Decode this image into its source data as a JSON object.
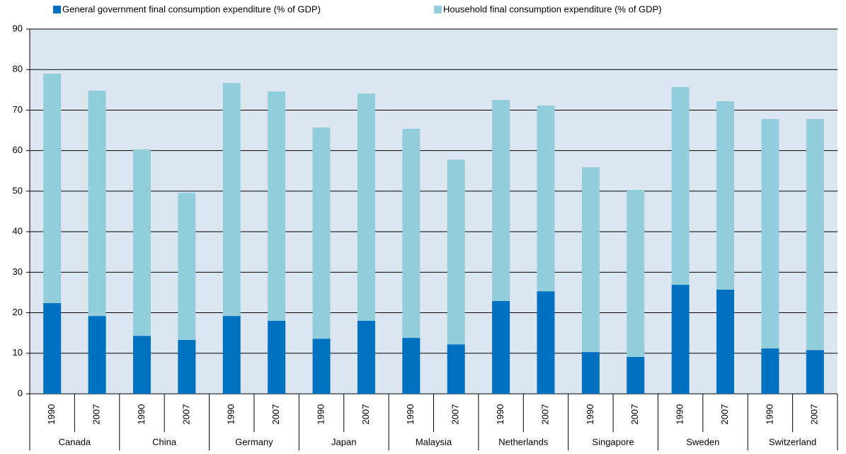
{
  "chart_data": {
    "type": "stacked_bar",
    "categories": [
      "1990",
      "2007",
      "1990",
      "2007",
      "1990",
      "2007",
      "1990",
      "2007",
      "1990",
      "2007",
      "1990",
      "2007",
      "1990",
      "2007",
      "1990",
      "2007",
      "1990",
      "2007"
    ],
    "groups": [
      "Canada",
      "China",
      "Germany",
      "Japan",
      "Malaysia",
      "Netherlands",
      "Singapore",
      "Sweden",
      "Switzerland"
    ],
    "series": [
      {
        "name": "General government final consumption expenditure (% of GDP)",
        "color": "#0070c0",
        "values": [
          22.4,
          19.2,
          14.3,
          13.3,
          19.2,
          18.0,
          13.6,
          18.0,
          13.8,
          12.2,
          22.9,
          25.3,
          10.3,
          9.1,
          26.9,
          25.7,
          11.2,
          10.8
        ]
      },
      {
        "name": "Household final consumption expenditure (% of GDP)",
        "color": "#92cddc",
        "values": [
          56.6,
          55.6,
          46.0,
          36.3,
          57.5,
          56.6,
          52.1,
          56.1,
          51.6,
          45.6,
          49.6,
          45.8,
          45.6,
          41.2,
          48.8,
          46.5,
          56.6,
          57.0
        ]
      }
    ],
    "ylim": [
      0,
      90
    ],
    "yticks": [
      0,
      10,
      20,
      30,
      40,
      50,
      60,
      70,
      80,
      90
    ],
    "grid": true,
    "plot_background": "#dce6f1"
  }
}
